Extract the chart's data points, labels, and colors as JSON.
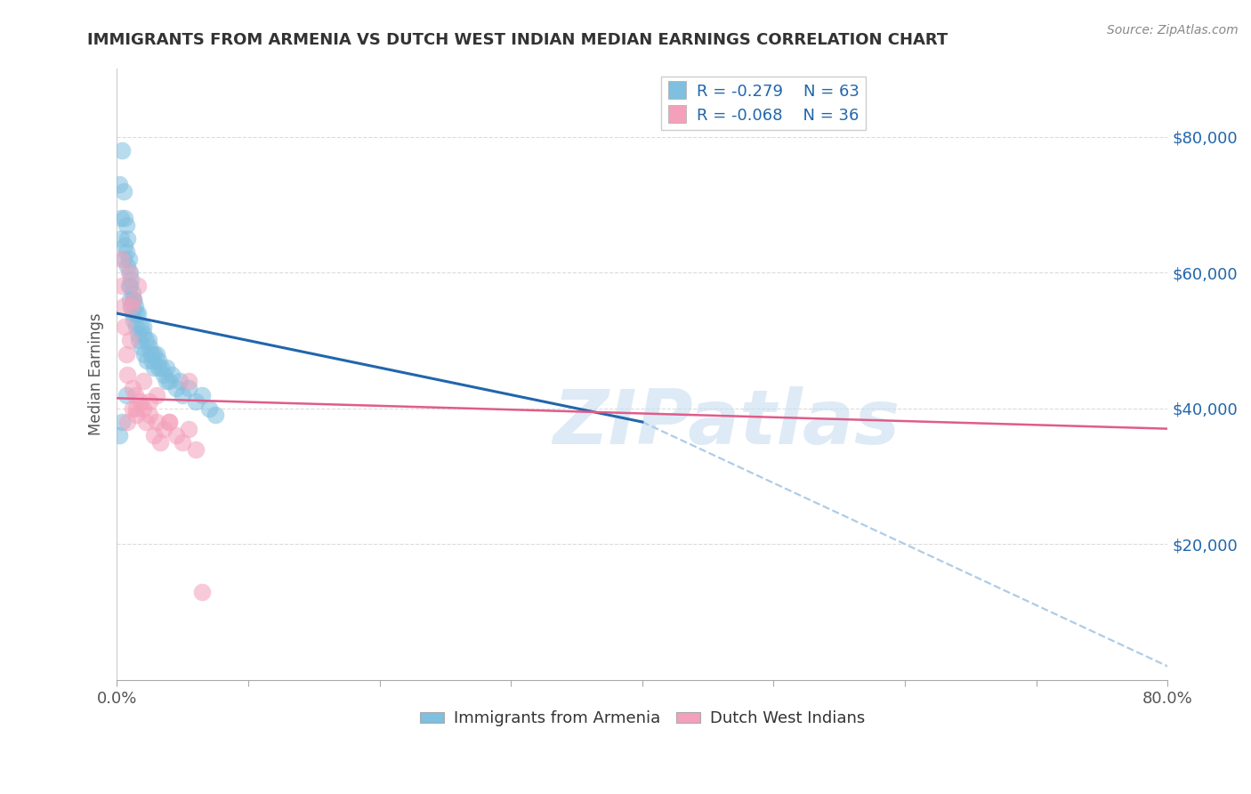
{
  "title": "IMMIGRANTS FROM ARMENIA VS DUTCH WEST INDIAN MEDIAN EARNINGS CORRELATION CHART",
  "source": "Source: ZipAtlas.com",
  "ylabel": "Median Earnings",
  "xlim": [
    0.0,
    0.8
  ],
  "ylim": [
    0,
    90000
  ],
  "yticks": [
    20000,
    40000,
    60000,
    80000
  ],
  "ytick_labels": [
    "$20,000",
    "$40,000",
    "$60,000",
    "$80,000"
  ],
  "xticks": [
    0.0,
    0.1,
    0.2,
    0.3,
    0.4,
    0.5,
    0.6,
    0.7,
    0.8
  ],
  "xtick_labels": [
    "0.0%",
    "",
    "",
    "",
    "",
    "",
    "",
    "",
    "80.0%"
  ],
  "legend_r1": "R = -0.279",
  "legend_n1": "N = 63",
  "legend_r2": "R = -0.068",
  "legend_n2": "N = 36",
  "legend_label1": "Immigrants from Armenia",
  "legend_label2": "Dutch West Indians",
  "blue_color": "#7fbfdf",
  "pink_color": "#f4a0ba",
  "blue_line_color": "#2166ac",
  "pink_line_color": "#e05c8a",
  "dashed_line_color": "#aecce8",
  "watermark": "ZIPatlas",
  "title_color": "#333333",
  "source_color": "#888888",
  "blue_scatter_x": [
    0.002,
    0.003,
    0.003,
    0.004,
    0.005,
    0.005,
    0.006,
    0.006,
    0.007,
    0.007,
    0.008,
    0.008,
    0.009,
    0.009,
    0.01,
    0.01,
    0.011,
    0.011,
    0.012,
    0.012,
    0.013,
    0.013,
    0.014,
    0.015,
    0.015,
    0.016,
    0.017,
    0.018,
    0.019,
    0.02,
    0.021,
    0.022,
    0.023,
    0.025,
    0.026,
    0.027,
    0.028,
    0.03,
    0.032,
    0.034,
    0.036,
    0.038,
    0.04,
    0.042,
    0.045,
    0.048,
    0.05,
    0.055,
    0.06,
    0.065,
    0.07,
    0.075,
    0.038,
    0.032,
    0.028,
    0.024,
    0.02,
    0.016,
    0.013,
    0.01,
    0.007,
    0.004,
    0.002
  ],
  "blue_scatter_y": [
    73000,
    68000,
    65000,
    78000,
    62000,
    72000,
    64000,
    68000,
    63000,
    67000,
    61000,
    65000,
    62000,
    58000,
    60000,
    56000,
    59000,
    55000,
    57000,
    54000,
    56000,
    53000,
    55000,
    54000,
    52000,
    51000,
    50000,
    52000,
    49000,
    51000,
    48000,
    50000,
    47000,
    49000,
    48000,
    47000,
    46000,
    48000,
    47000,
    46000,
    45000,
    46000,
    44000,
    45000,
    43000,
    44000,
    42000,
    43000,
    41000,
    42000,
    40000,
    39000,
    44000,
    46000,
    48000,
    50000,
    52000,
    54000,
    56000,
    58000,
    42000,
    38000,
    36000
  ],
  "pink_scatter_x": [
    0.003,
    0.004,
    0.005,
    0.006,
    0.007,
    0.008,
    0.009,
    0.01,
    0.011,
    0.012,
    0.013,
    0.014,
    0.015,
    0.016,
    0.018,
    0.02,
    0.022,
    0.025,
    0.028,
    0.03,
    0.033,
    0.036,
    0.04,
    0.045,
    0.05,
    0.055,
    0.06,
    0.065,
    0.03,
    0.02,
    0.012,
    0.008,
    0.055,
    0.025,
    0.04,
    0.015
  ],
  "pink_scatter_y": [
    62000,
    58000,
    55000,
    52000,
    48000,
    45000,
    60000,
    50000,
    55000,
    43000,
    56000,
    42000,
    40000,
    58000,
    41000,
    40000,
    38000,
    39000,
    36000,
    38000,
    35000,
    37000,
    38000,
    36000,
    35000,
    37000,
    34000,
    13000,
    42000,
    44000,
    40000,
    38000,
    44000,
    41000,
    38000,
    39000
  ],
  "blue_trend_x": [
    0.0,
    0.4
  ],
  "blue_trend_y": [
    54000,
    38000
  ],
  "pink_trend_x": [
    0.0,
    0.8
  ],
  "pink_trend_y": [
    41500,
    37000
  ],
  "dashed_trend_x": [
    0.4,
    0.8
  ],
  "dashed_trend_y": [
    38000,
    2000
  ],
  "background_color": "#ffffff",
  "grid_color": "#cccccc"
}
